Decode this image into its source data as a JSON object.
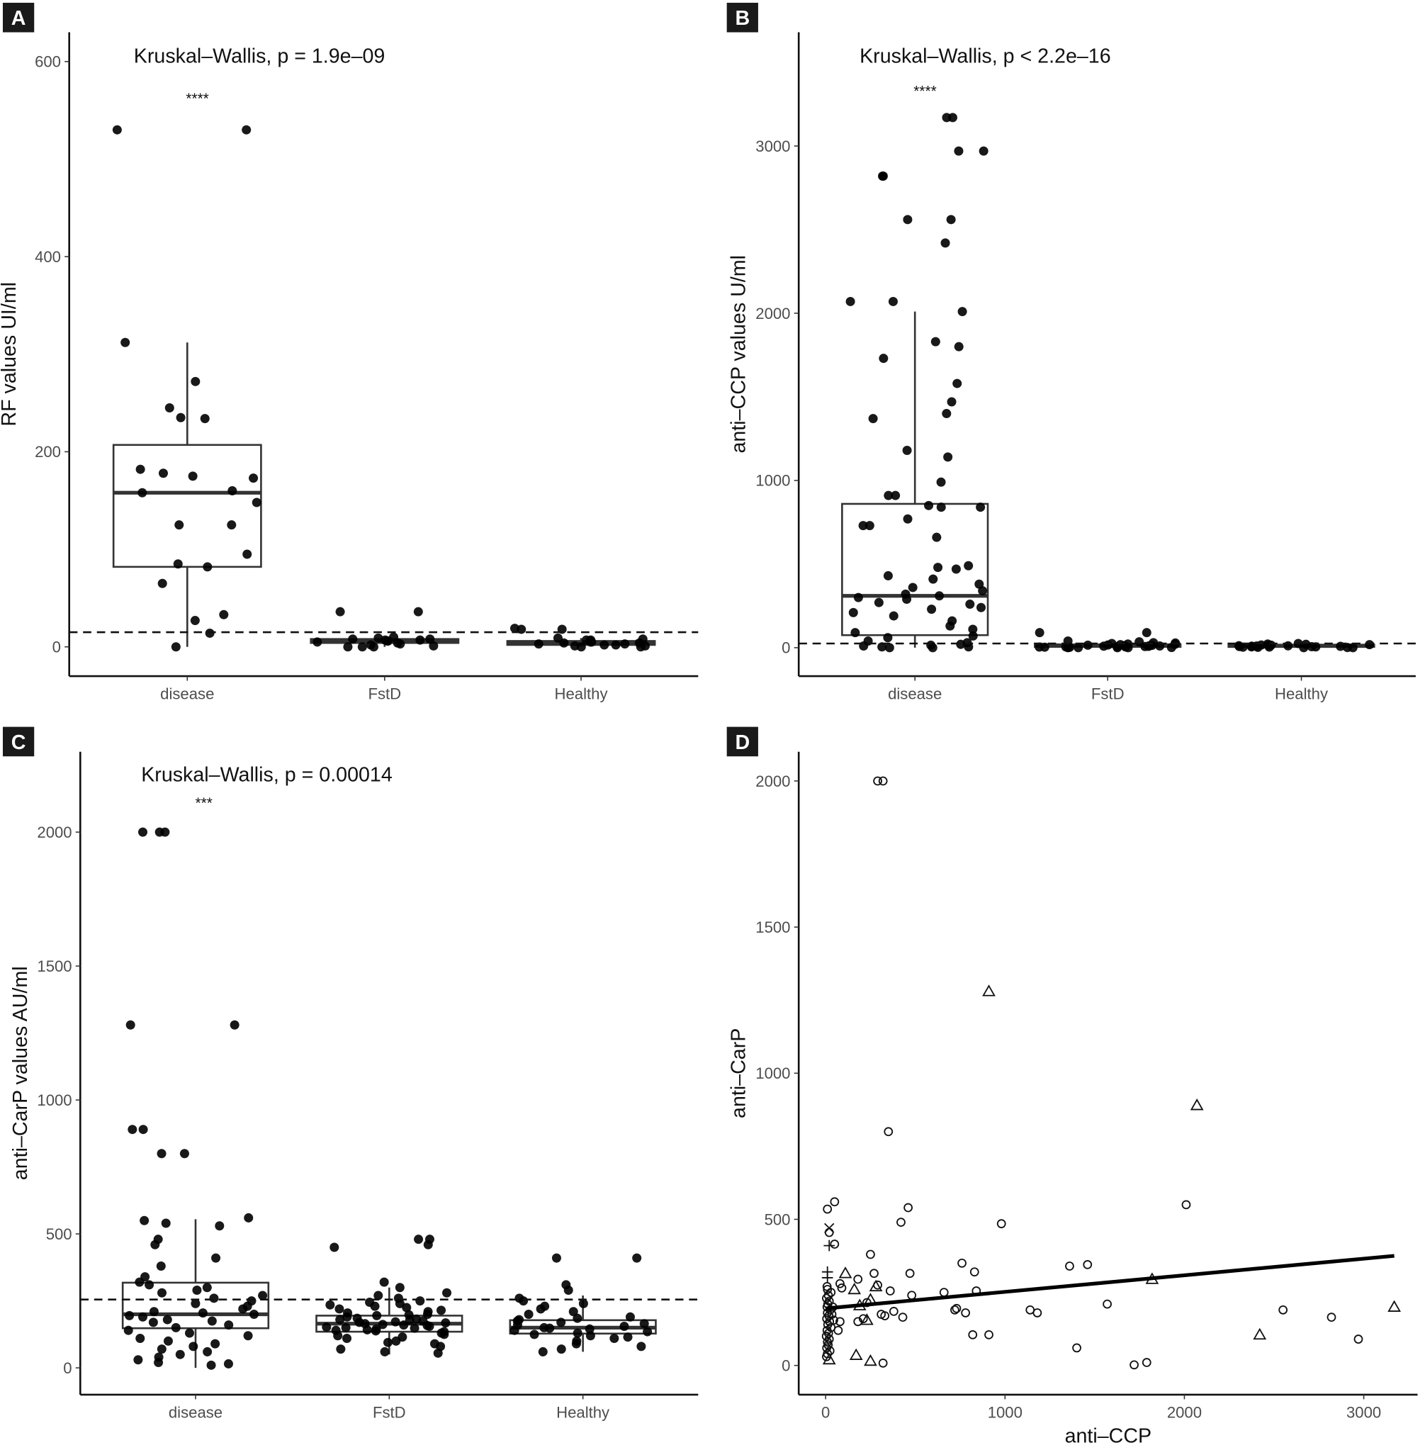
{
  "chart_data": [
    {
      "panel": "A",
      "type": "box",
      "ylabel": "RF values UI/ml",
      "xlabel": "",
      "annotation": "Kruskal–Wallis, p = 1.9e–09",
      "significance": "****",
      "categories": [
        "disease",
        "FstD",
        "Healthy"
      ],
      "yticks": [
        0,
        200,
        400,
        600
      ],
      "ylim": [
        -30,
        630
      ],
      "reference_line": 15,
      "boxes": [
        {
          "q1": 82,
          "median": 158,
          "q3": 207,
          "lo": 0,
          "hi": 312
        },
        {
          "q1": 4,
          "median": 6,
          "q3": 8,
          "lo": 0,
          "hi": 10
        },
        {
          "q1": 2,
          "median": 4,
          "q3": 6,
          "lo": 0,
          "hi": 9
        }
      ],
      "points": [
        [
          530,
          530,
          312,
          272,
          245,
          235,
          234,
          182,
          178,
          175,
          173,
          160,
          158,
          148,
          125,
          125,
          95,
          85,
          82,
          65,
          33,
          27,
          14,
          0
        ],
        [
          36,
          36,
          10,
          9,
          8,
          8,
          7,
          7,
          6,
          6,
          5,
          4,
          3,
          2,
          1,
          0,
          0,
          0
        ],
        [
          19,
          18,
          18,
          9,
          8,
          7,
          7,
          6,
          5,
          5,
          4,
          4,
          3,
          3,
          2,
          2,
          1,
          1,
          0,
          0
        ]
      ]
    },
    {
      "panel": "B",
      "type": "box",
      "ylabel": "anti–CCP values U/ml",
      "xlabel": "",
      "annotation": "Kruskal–Wallis, p < 2.2e–16",
      "significance": "****",
      "categories": [
        "disease",
        "FstD",
        "Healthy"
      ],
      "yticks": [
        0,
        1000,
        2000,
        3000
      ],
      "ylim": [
        -170,
        3680
      ],
      "reference_line": 25,
      "boxes": [
        {
          "q1": 75,
          "median": 310,
          "q3": 860,
          "lo": 0,
          "hi": 2010
        },
        {
          "q1": 5,
          "median": 12,
          "q3": 20,
          "lo": 0,
          "hi": 40
        },
        {
          "q1": 5,
          "median": 10,
          "q3": 18,
          "lo": 0,
          "hi": 30
        }
      ],
      "points": [
        [
          3170,
          3170,
          2970,
          2970,
          2820,
          2820,
          2560,
          2560,
          2420,
          2070,
          2070,
          2010,
          1830,
          1800,
          1730,
          1580,
          1470,
          1400,
          1370,
          1180,
          1140,
          990,
          910,
          910,
          850,
          840,
          840,
          770,
          730,
          730,
          660,
          490,
          480,
          470,
          430,
          410,
          380,
          360,
          340,
          320,
          310,
          300,
          290,
          270,
          260,
          240,
          230,
          210,
          190,
          160,
          130,
          110,
          90,
          70,
          60,
          40,
          30,
          20,
          15,
          10,
          5,
          5,
          0,
          0
        ],
        [
          90,
          90,
          40,
          35,
          30,
          28,
          25,
          22,
          20,
          18,
          16,
          15,
          14,
          12,
          11,
          10,
          9,
          8,
          7,
          6,
          5,
          5,
          4,
          3,
          2,
          1,
          0,
          0,
          0,
          0
        ],
        [
          25,
          22,
          20,
          18,
          16,
          15,
          14,
          12,
          11,
          10,
          9,
          8,
          7,
          6,
          5,
          5,
          4,
          3,
          2,
          1,
          0,
          0
        ]
      ]
    },
    {
      "panel": "C",
      "type": "box",
      "ylabel": "anti–CarP values AU/ml",
      "xlabel": "",
      "annotation": "Kruskal–Wallis, p = 0.00014",
      "significance": "***",
      "categories": [
        "disease",
        "FstD",
        "Healthy"
      ],
      "yticks": [
        0,
        500,
        1000,
        1500,
        2000
      ],
      "ylim": [
        -100,
        2300
      ],
      "reference_line": 255,
      "boxes": [
        {
          "q1": 148,
          "median": 200,
          "q3": 318,
          "lo": 0,
          "hi": 555
        },
        {
          "q1": 135,
          "median": 165,
          "q3": 195,
          "lo": 50,
          "hi": 300
        },
        {
          "q1": 128,
          "median": 150,
          "q3": 178,
          "lo": 60,
          "hi": 270
        }
      ],
      "points": [
        [
          2000,
          2000,
          2000,
          1280,
          1280,
          890,
          890,
          800,
          800,
          560,
          550,
          540,
          530,
          480,
          460,
          410,
          380,
          340,
          320,
          310,
          300,
          290,
          280,
          270,
          260,
          250,
          240,
          230,
          220,
          210,
          205,
          200,
          195,
          190,
          180,
          175,
          170,
          160,
          150,
          140,
          130,
          120,
          110,
          100,
          90,
          80,
          70,
          60,
          50,
          40,
          30,
          20,
          15,
          10
        ],
        [
          480,
          480,
          460,
          450,
          320,
          300,
          280,
          270,
          260,
          250,
          245,
          240,
          235,
          230,
          225,
          220,
          215,
          210,
          205,
          200,
          198,
          195,
          190,
          185,
          182,
          180,
          178,
          175,
          172,
          170,
          168,
          165,
          162,
          160,
          158,
          155,
          152,
          150,
          148,
          145,
          142,
          140,
          138,
          135,
          130,
          125,
          120,
          115,
          110,
          100,
          95,
          90,
          80,
          70,
          60,
          55
        ],
        [
          410,
          410,
          310,
          290,
          260,
          250,
          240,
          230,
          220,
          210,
          200,
          190,
          185,
          180,
          175,
          170,
          165,
          160,
          155,
          150,
          148,
          145,
          140,
          135,
          130,
          125,
          120,
          115,
          110,
          100,
          90,
          80,
          70,
          60
        ]
      ]
    },
    {
      "panel": "D",
      "type": "scatter",
      "xlabel": "anti–CCP",
      "ylabel": "anti–CarP",
      "xticks": [
        0,
        1000,
        2000,
        3000
      ],
      "yticks": [
        0,
        500,
        1000,
        1500,
        2000
      ],
      "xlim": [
        -150,
        3300
      ],
      "ylim": [
        -100,
        2100
      ],
      "trend_line": {
        "x": [
          0,
          3170
        ],
        "y": [
          195,
          375
        ]
      },
      "points": [
        [
          290,
          2000,
          "circle"
        ],
        [
          320,
          2000,
          "circle"
        ],
        [
          910,
          1280,
          "triangle"
        ],
        [
          2070,
          890,
          "triangle"
        ],
        [
          350,
          800,
          "circle"
        ],
        [
          2010,
          550,
          "circle"
        ],
        [
          460,
          540,
          "circle"
        ],
        [
          10,
          535,
          "circle"
        ],
        [
          50,
          560,
          "circle"
        ],
        [
          420,
          490,
          "circle"
        ],
        [
          980,
          485,
          "circle"
        ],
        [
          20,
          470,
          "x"
        ],
        [
          20,
          455,
          "circle"
        ],
        [
          20,
          410,
          "plus"
        ],
        [
          50,
          415,
          "circle"
        ],
        [
          250,
          380,
          "circle"
        ],
        [
          760,
          350,
          "circle"
        ],
        [
          1460,
          345,
          "circle"
        ],
        [
          1360,
          340,
          "circle"
        ],
        [
          830,
          320,
          "circle"
        ],
        [
          470,
          315,
          "circle"
        ],
        [
          270,
          315,
          "circle"
        ],
        [
          110,
          315,
          "triangle"
        ],
        [
          10,
          320,
          "plus"
        ],
        [
          10,
          300,
          "plus"
        ],
        [
          1820,
          295,
          "triangle"
        ],
        [
          180,
          295,
          "circle"
        ],
        [
          80,
          280,
          "circle"
        ],
        [
          290,
          275,
          "circle"
        ],
        [
          280,
          270,
          "triangle"
        ],
        [
          90,
          265,
          "circle"
        ],
        [
          160,
          260,
          "triangle"
        ],
        [
          360,
          255,
          "circle"
        ],
        [
          840,
          255,
          "circle"
        ],
        [
          660,
          250,
          "circle"
        ],
        [
          480,
          240,
          "circle"
        ],
        [
          250,
          225,
          "triangle"
        ],
        [
          230,
          215,
          "circle"
        ],
        [
          1570,
          210,
          "circle"
        ],
        [
          190,
          205,
          "triangle"
        ],
        [
          730,
          195,
          "circle"
        ],
        [
          720,
          190,
          "circle"
        ],
        [
          380,
          185,
          "circle"
        ],
        [
          1140,
          190,
          "circle"
        ],
        [
          2550,
          190,
          "circle"
        ],
        [
          780,
          180,
          "circle"
        ],
        [
          1180,
          180,
          "circle"
        ],
        [
          3170,
          200,
          "triangle"
        ],
        [
          310,
          175,
          "circle"
        ],
        [
          330,
          170,
          "circle"
        ],
        [
          430,
          165,
          "circle"
        ],
        [
          2820,
          165,
          "circle"
        ],
        [
          210,
          160,
          "circle"
        ],
        [
          230,
          155,
          "triangle"
        ],
        [
          180,
          150,
          "circle"
        ],
        [
          80,
          150,
          "circle"
        ],
        [
          70,
          120,
          "circle"
        ],
        [
          820,
          105,
          "circle"
        ],
        [
          910,
          105,
          "circle"
        ],
        [
          2420,
          105,
          "triangle"
        ],
        [
          2970,
          90,
          "circle"
        ],
        [
          1400,
          60,
          "circle"
        ],
        [
          170,
          35,
          "triangle"
        ],
        [
          250,
          15,
          "triangle"
        ],
        [
          320,
          8,
          "circle"
        ],
        [
          1720,
          2,
          "circle"
        ],
        [
          1790,
          10,
          "circle"
        ],
        [
          20,
          20,
          "triangle"
        ],
        [
          10,
          260,
          "circle"
        ],
        [
          15,
          240,
          "circle"
        ],
        [
          5,
          230,
          "circle"
        ],
        [
          20,
          220,
          "circle"
        ],
        [
          12,
          210,
          "circle"
        ],
        [
          8,
          200,
          "circle"
        ],
        [
          25,
          190,
          "circle"
        ],
        [
          10,
          180,
          "circle"
        ],
        [
          18,
          170,
          "circle"
        ],
        [
          6,
          160,
          "circle"
        ],
        [
          22,
          150,
          "circle"
        ],
        [
          12,
          140,
          "circle"
        ],
        [
          30,
          130,
          "circle"
        ],
        [
          8,
          120,
          "circle"
        ],
        [
          16,
          110,
          "circle"
        ],
        [
          4,
          100,
          "circle"
        ],
        [
          20,
          90,
          "circle"
        ],
        [
          10,
          80,
          "circle"
        ],
        [
          14,
          70,
          "circle"
        ],
        [
          6,
          60,
          "circle"
        ],
        [
          24,
          50,
          "circle"
        ],
        [
          10,
          40,
          "circle"
        ],
        [
          5,
          30,
          "circle"
        ],
        [
          40,
          200,
          "circle"
        ],
        [
          35,
          175,
          "circle"
        ],
        [
          45,
          155,
          "circle"
        ],
        [
          30,
          250,
          "circle"
        ],
        [
          8,
          270,
          "circle"
        ]
      ]
    }
  ],
  "panel_labels": [
    "A",
    "B",
    "C",
    "D"
  ]
}
